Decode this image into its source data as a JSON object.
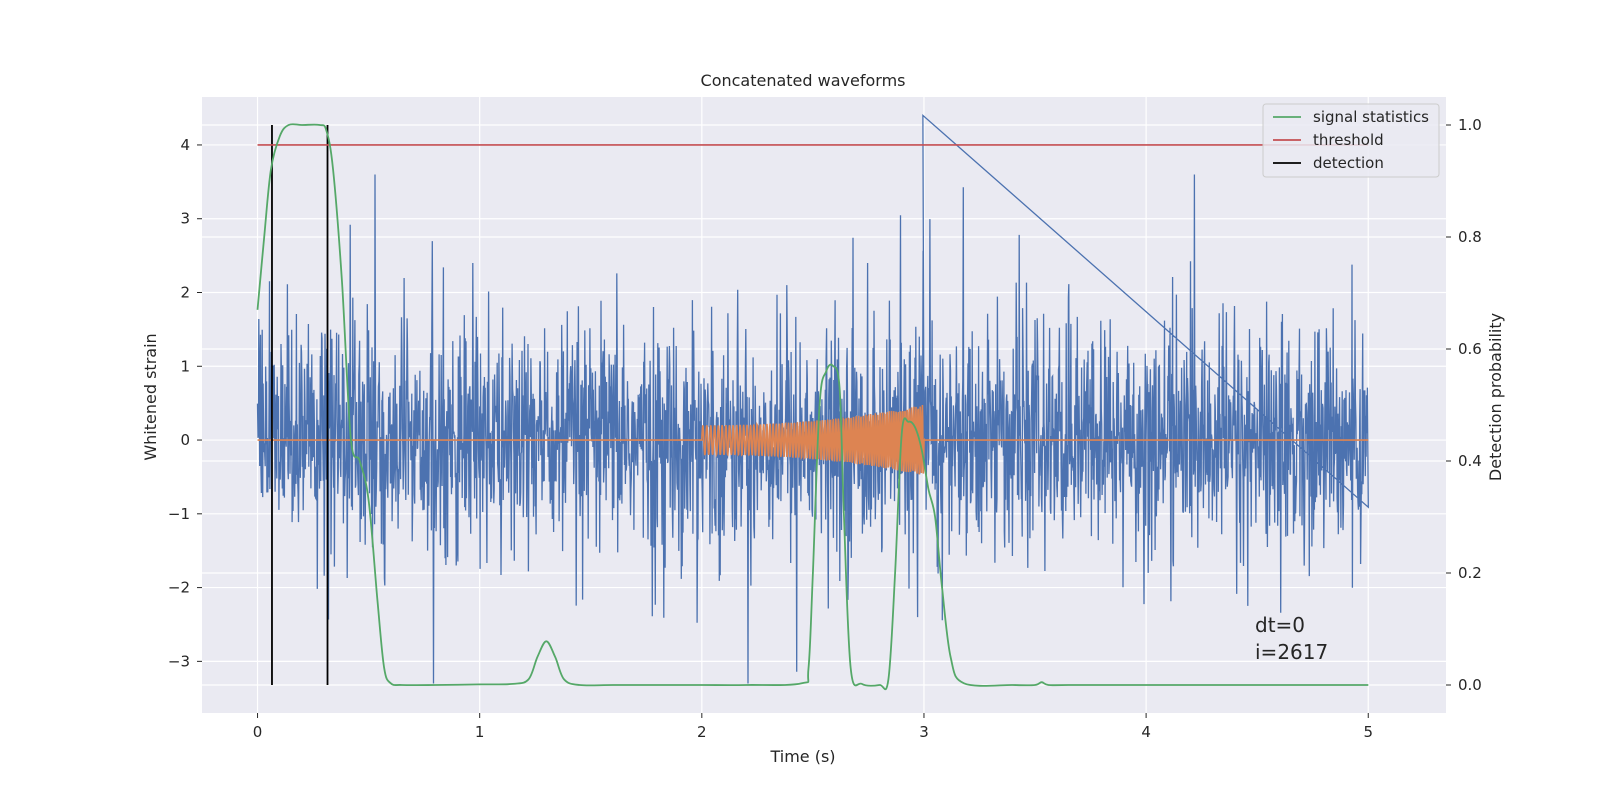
{
  "chart_data": {
    "type": "line",
    "title": "Concatenated waveforms",
    "xlabel": "Time (s)",
    "ylabel": "Whitened strain",
    "ylabel_right": "Detection probability",
    "xlim": [
      -0.25,
      5.35
    ],
    "ylim": [
      -3.7,
      4.65
    ],
    "ylim_right": [
      -0.05,
      1.05
    ],
    "x_ticks": [
      "0",
      "1",
      "2",
      "3",
      "4",
      "5"
    ],
    "x_tick_values": [
      0,
      1,
      2,
      3,
      4,
      5
    ],
    "y_ticks": [
      "−3",
      "−2",
      "−1",
      "0",
      "1",
      "2",
      "3",
      "4"
    ],
    "y_tick_values": [
      -3,
      -2,
      -1,
      0,
      1,
      2,
      3,
      4
    ],
    "y_right_ticks": [
      "0.0",
      "0.2",
      "0.4",
      "0.6",
      "0.8",
      "1.0"
    ],
    "y_right_tick_values": [
      0.0,
      0.2,
      0.4,
      0.6,
      0.8,
      1.0
    ],
    "grid": true,
    "legend_position": "top-right",
    "colors": {
      "strain": "#4c72b0",
      "template": "#dd8452",
      "signal_statistics": "#55a868",
      "threshold": "#c44e52",
      "detection": "#000000",
      "background": "#eaeaf2",
      "grid": "#ffffff"
    },
    "series": [
      {
        "name": "signal statistics",
        "axis": "right",
        "x": [
          0,
          0.03,
          0.06,
          0.1,
          0.14,
          0.2,
          0.28,
          0.31,
          0.34,
          0.38,
          0.42,
          0.46,
          0.5,
          0.54,
          0.57,
          0.6,
          0.65,
          0.8,
          1.0,
          1.15,
          1.22,
          1.26,
          1.3,
          1.34,
          1.38,
          1.45,
          1.6,
          1.8,
          2.0,
          2.2,
          2.45,
          2.48,
          2.5,
          2.53,
          2.56,
          2.59,
          2.62,
          2.64,
          2.67,
          2.72,
          2.8,
          2.84,
          2.87,
          2.9,
          2.93,
          2.96,
          2.99,
          3.02,
          3.05,
          3.08,
          3.12,
          3.18,
          3.4,
          3.5,
          3.53,
          3.56,
          3.65,
          4.0,
          4.5,
          5.0
        ],
        "y": [
          0.67,
          0.8,
          0.92,
          0.98,
          1.0,
          1.0,
          1.0,
          0.99,
          0.92,
          0.72,
          0.44,
          0.4,
          0.33,
          0.15,
          0.03,
          0.003,
          0.0,
          0.0,
          0.001,
          0.002,
          0.01,
          0.05,
          0.078,
          0.05,
          0.01,
          0.0,
          0.0,
          0.0,
          0.0,
          0.0,
          0.003,
          0.03,
          0.2,
          0.5,
          0.56,
          0.57,
          0.53,
          0.3,
          0.03,
          0.002,
          0.0,
          0.01,
          0.2,
          0.45,
          0.47,
          0.46,
          0.42,
          0.35,
          0.3,
          0.18,
          0.05,
          0.003,
          0.0,
          0.0,
          0.005,
          0.0,
          0.0,
          0.0,
          0.0,
          0.0
        ]
      },
      {
        "name": "threshold",
        "axis": "left",
        "x": [
          0,
          5
        ],
        "y": [
          4,
          4
        ]
      },
      {
        "name": "detection",
        "axis": "right",
        "x_lines": [
          0.065,
          0.315
        ],
        "y_range": [
          0.0,
          1.0
        ]
      }
    ],
    "annotations": [
      "dt=0",
      "i=2617"
    ]
  }
}
